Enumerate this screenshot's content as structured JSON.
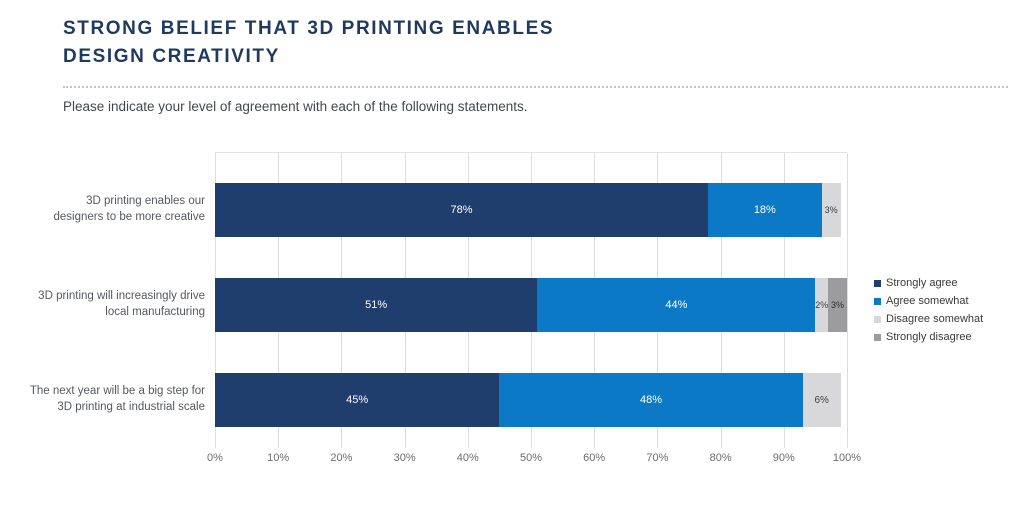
{
  "header": {
    "title_line1": "STRONG BELIEF THAT 3D PRINTING ENABLES",
    "title_line2": "DESIGN CREATIVITY",
    "subtitle": "Please indicate your level of agreement with each of the following statements."
  },
  "colors": {
    "title": "#1e3a5f",
    "gridline": "#dcdcdc",
    "strongly_agree": "#1f3d6d",
    "agree_somewhat": "#0b79c6",
    "disagree_somewhat": "#d8d8da",
    "strongly_disagree": "#9c9c9e"
  },
  "chart_data": {
    "type": "bar",
    "orientation": "horizontal",
    "stacked": true,
    "grid": "vertical",
    "legend_position": "right",
    "xlim": [
      0,
      100
    ],
    "x_ticks": [
      "0%",
      "10%",
      "20%",
      "30%",
      "40%",
      "50%",
      "60%",
      "70%",
      "80%",
      "90%",
      "100%"
    ],
    "value_suffix": "%",
    "categories": [
      "3D printing enables our designers to be more creative",
      "3D printing will increasingly drive local manufacturing",
      "The next year will be a big step for 3D printing at industrial scale"
    ],
    "category_lines": [
      [
        "3D printing enables our",
        "designers to be more creative"
      ],
      [
        "3D printing will increasingly drive",
        "local manufacturing"
      ],
      [
        "The next year will be a big step for",
        "3D printing at industrial scale"
      ]
    ],
    "series": [
      {
        "name": "Strongly agree",
        "color": "#1f3d6d",
        "label_color": "#ffffff",
        "values": [
          78,
          51,
          45
        ]
      },
      {
        "name": "Agree somewhat",
        "color": "#0b79c6",
        "label_color": "#ffffff",
        "values": [
          18,
          44,
          48
        ]
      },
      {
        "name": "Disagree somewhat",
        "color": "#d8d8da",
        "label_color": "#3f3f3f",
        "values": [
          3,
          2,
          6
        ]
      },
      {
        "name": "Strongly disagree",
        "color": "#9c9c9e",
        "label_color": "#2e2e2e",
        "values": [
          0,
          3,
          0
        ]
      }
    ]
  }
}
